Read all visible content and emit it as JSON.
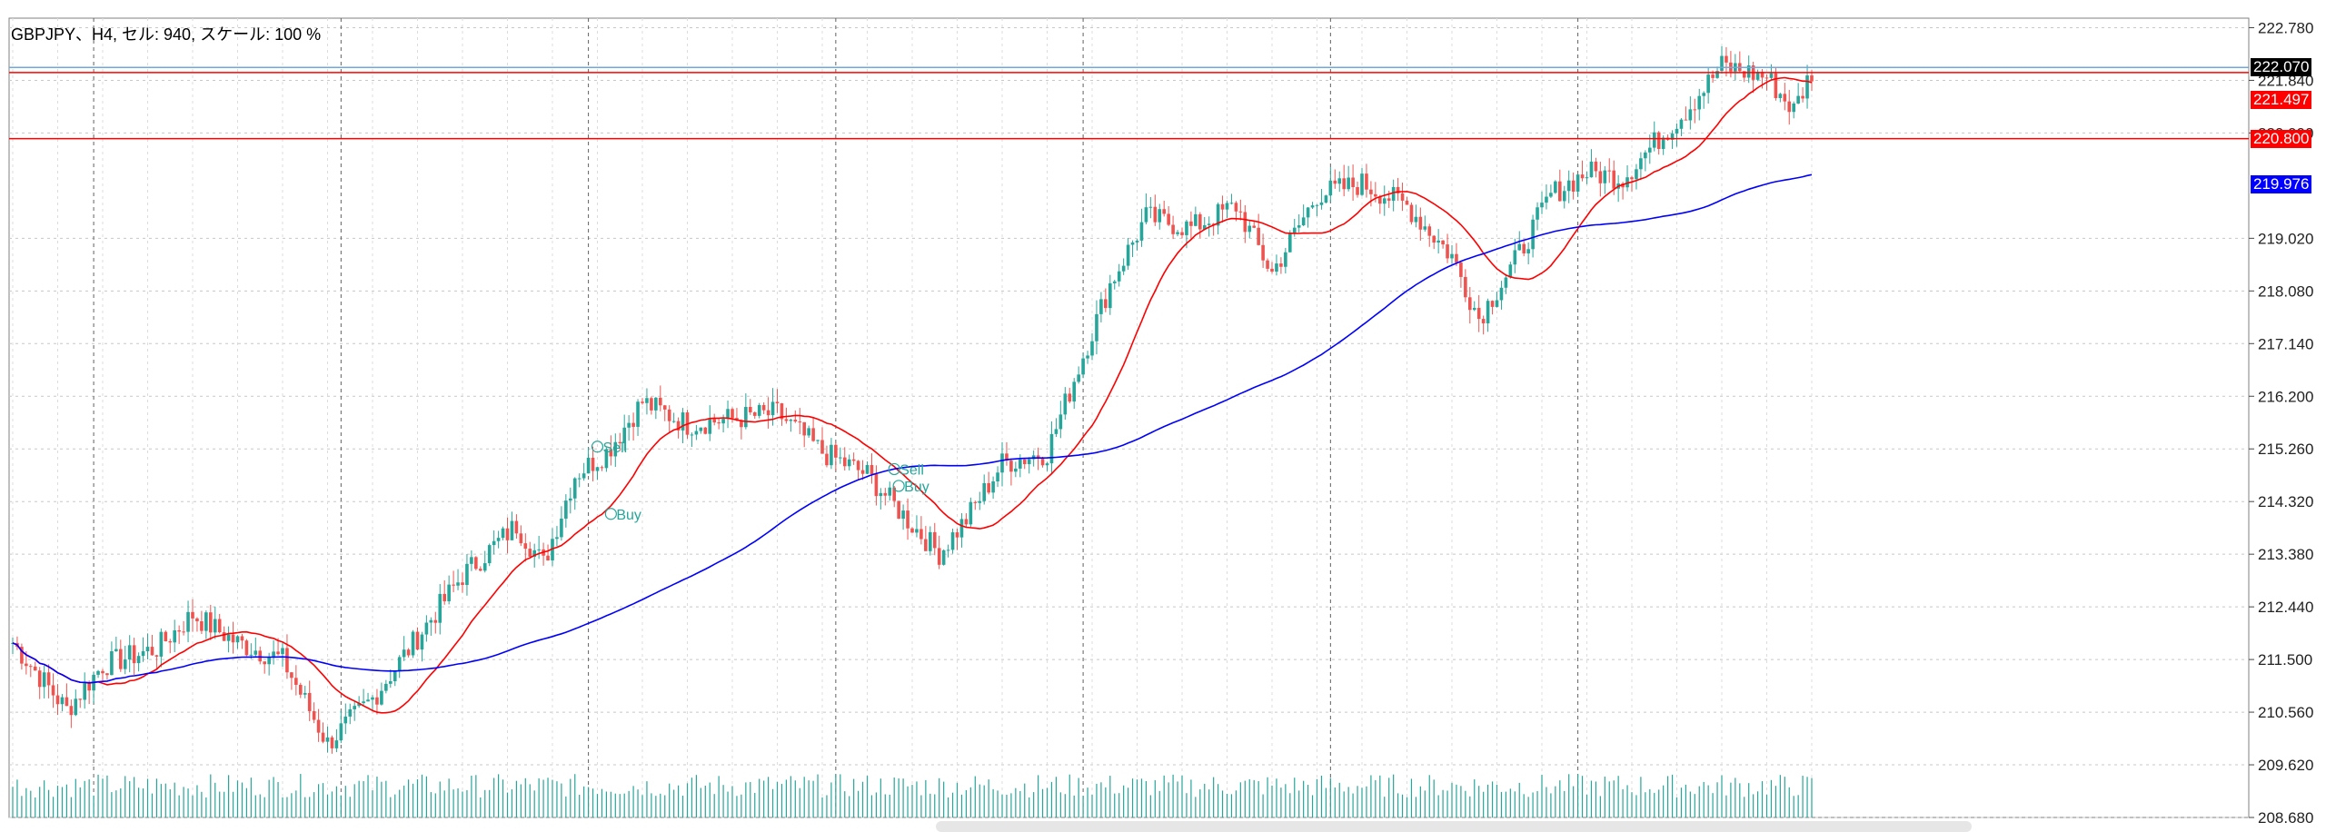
{
  "chart_title": "GBPJPY、H4, セル: 940, スケール: 100 %",
  "price_labels": {
    "current": "222.070",
    "ma_fast": "221.497",
    "level": "220.800",
    "ma_slow": "219.976"
  },
  "trade_marks": {
    "sell": "Sell",
    "buy": "Buy"
  },
  "colors": {
    "bull": "#26a69a",
    "bear": "#ef5350",
    "ma_fast": "#ff0000",
    "ma_slow": "#0000ff",
    "hline_red": "#ff0000",
    "hline_blue": "#6fa8dc",
    "grid": "#c8c8c8",
    "volume": "#26a69a"
  },
  "chart_data": {
    "type": "candlestick",
    "title": "GBPJPY、H4, セル: 940, スケール: 100 %",
    "timeframe": "H4",
    "y_ticks": [
      "222.780",
      "221.840",
      "220.900",
      "219.020",
      "218.080",
      "217.140",
      "216.200",
      "215.260",
      "214.320",
      "213.380",
      "212.440",
      "211.500",
      "210.560",
      "209.620",
      "208.680"
    ],
    "ylim": [
      208.68,
      222.95
    ],
    "horizontal_lines": [
      {
        "value": 222.07,
        "color": "blue",
        "label": "222.070"
      },
      {
        "value": 221.98,
        "color": "red"
      },
      {
        "value": 220.8,
        "color": "red",
        "label": "220.800"
      }
    ],
    "moving_average_fast_last": 221.497,
    "moving_average_slow_last": 219.976,
    "close_anchors": [
      [
        0,
        211.8
      ],
      [
        12,
        210.6
      ],
      [
        20,
        211.4
      ],
      [
        32,
        211.7
      ],
      [
        40,
        212.3
      ],
      [
        50,
        211.8
      ],
      [
        60,
        211.5
      ],
      [
        70,
        210.0
      ],
      [
        80,
        210.8
      ],
      [
        90,
        211.9
      ],
      [
        100,
        213.0
      ],
      [
        112,
        213.9
      ],
      [
        118,
        213.2
      ],
      [
        125,
        214.8
      ],
      [
        132,
        215.2
      ],
      [
        140,
        216.1
      ],
      [
        150,
        215.7
      ],
      [
        160,
        215.8
      ],
      [
        170,
        215.9
      ],
      [
        180,
        215.2
      ],
      [
        190,
        214.8
      ],
      [
        200,
        213.9
      ],
      [
        206,
        213.4
      ],
      [
        212,
        214.0
      ],
      [
        220,
        215.0
      ],
      [
        230,
        215.2
      ],
      [
        236,
        216.5
      ],
      [
        244,
        218.2
      ],
      [
        252,
        219.4
      ],
      [
        262,
        219.2
      ],
      [
        272,
        219.6
      ],
      [
        280,
        218.4
      ],
      [
        290,
        219.8
      ],
      [
        300,
        220.0
      ],
      [
        310,
        219.6
      ],
      [
        320,
        218.7
      ],
      [
        326,
        217.6
      ],
      [
        334,
        218.6
      ],
      [
        342,
        219.8
      ],
      [
        350,
        220.2
      ],
      [
        358,
        220.1
      ],
      [
        366,
        220.8
      ],
      [
        372,
        221.3
      ],
      [
        380,
        222.1
      ],
      [
        390,
        221.9
      ],
      [
        396,
        221.3
      ],
      [
        400,
        222.0
      ]
    ]
  }
}
